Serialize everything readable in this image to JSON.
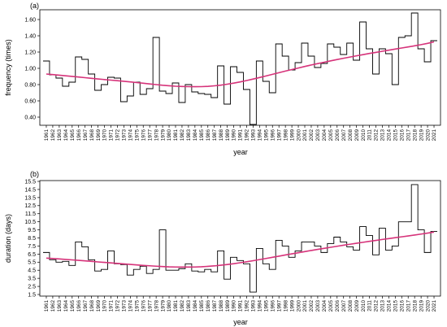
{
  "chart_data": [
    {
      "type": "line",
      "panel_label": "(a)",
      "xlabel": "year",
      "ylabel": "frequency (times)",
      "ylim": [
        0.3,
        1.72
      ],
      "yticks": [
        "0.40",
        "0.60",
        "0.80",
        "1.00",
        "1.20",
        "1.40",
        "1.60"
      ],
      "x": [
        1961,
        1962,
        1963,
        1964,
        1965,
        1966,
        1967,
        1968,
        1969,
        1970,
        1971,
        1972,
        1973,
        1974,
        1975,
        1976,
        1977,
        1978,
        1979,
        1980,
        1981,
        1982,
        1983,
        1984,
        1985,
        1986,
        1987,
        1988,
        1989,
        1990,
        1991,
        1992,
        1993,
        1994,
        1995,
        1996,
        1997,
        1998,
        1999,
        2000,
        2001,
        2002,
        2003,
        2004,
        2005,
        2006,
        2007,
        2008,
        2009,
        2010,
        2011,
        2012,
        2013,
        2014,
        2015,
        2016,
        2017,
        2018,
        2019,
        2020,
        2021
      ],
      "series": [
        {
          "style": "step",
          "values": [
            1.09,
            0.92,
            0.88,
            0.78,
            0.83,
            1.14,
            1.11,
            0.93,
            0.73,
            0.8,
            0.89,
            0.88,
            0.59,
            0.66,
            0.83,
            0.68,
            0.75,
            1.38,
            0.72,
            0.69,
            0.82,
            0.58,
            0.8,
            0.71,
            0.69,
            0.68,
            0.64,
            1.03,
            0.56,
            1.02,
            0.95,
            0.74,
            0.31,
            1.09,
            0.84,
            0.7,
            1.3,
            1.15,
            0.98,
            1.07,
            1.31,
            1.15,
            1.01,
            1.06,
            1.3,
            1.26,
            1.17,
            1.31,
            1.1,
            1.57,
            1.24,
            0.93,
            1.24,
            1.18,
            0.8,
            1.38,
            1.4,
            1.68,
            1.24,
            1.08,
            1.34
          ]
        },
        {
          "style": "trend",
          "color": "#d6337a",
          "values": [
            0.93,
            0.923,
            0.916,
            0.908,
            0.901,
            0.893,
            0.885,
            0.877,
            0.869,
            0.862,
            0.855,
            0.848,
            0.841,
            0.833,
            0.825,
            0.817,
            0.808,
            0.8,
            0.792,
            0.786,
            0.78,
            0.777,
            0.775,
            0.774,
            0.775,
            0.778,
            0.785,
            0.793,
            0.805,
            0.818,
            0.833,
            0.85,
            0.868,
            0.887,
            0.906,
            0.926,
            0.946,
            0.966,
            0.985,
            1.004,
            1.023,
            1.041,
            1.058,
            1.075,
            1.092,
            1.108,
            1.124,
            1.139,
            1.154,
            1.168,
            1.183,
            1.196,
            1.21,
            1.223,
            1.237,
            1.25,
            1.263,
            1.277,
            1.291,
            1.307,
            1.325
          ]
        }
      ]
    },
    {
      "type": "line",
      "panel_label": "(b)",
      "xlabel": "year",
      "ylabel": "duration (days)",
      "ylim": [
        1.3,
        15.6
      ],
      "yticks": [
        "1.5",
        "2.5",
        "3.5",
        "4.5",
        "5.5",
        "6.5",
        "7.5",
        "8.5",
        "9.5",
        "10.5",
        "11.5",
        "12.5",
        "13.5",
        "14.5",
        "15.5"
      ],
      "x": [
        1961,
        1962,
        1963,
        1964,
        1965,
        1966,
        1967,
        1968,
        1969,
        1970,
        1971,
        1972,
        1973,
        1974,
        1975,
        1976,
        1977,
        1978,
        1979,
        1980,
        1981,
        1982,
        1983,
        1984,
        1985,
        1986,
        1987,
        1988,
        1989,
        1990,
        1991,
        1992,
        1993,
        1994,
        1995,
        1996,
        1997,
        1998,
        1999,
        2000,
        2001,
        2002,
        2003,
        2004,
        2005,
        2006,
        2007,
        2008,
        2009,
        2010,
        2011,
        2012,
        2013,
        2014,
        2015,
        2016,
        2017,
        2018,
        2019,
        2020,
        2021
      ],
      "series": [
        {
          "style": "step",
          "values": [
            6.7,
            5.8,
            5.5,
            5.6,
            5.1,
            8.0,
            7.4,
            5.8,
            4.4,
            4.6,
            6.9,
            5.3,
            5.2,
            3.9,
            4.6,
            5.0,
            4.1,
            4.6,
            9.5,
            4.5,
            4.5,
            4.7,
            5.3,
            4.4,
            4.3,
            4.6,
            4.3,
            6.9,
            3.4,
            6.1,
            5.7,
            5.3,
            1.8,
            7.2,
            5.3,
            4.6,
            8.2,
            7.5,
            6.1,
            6.9,
            8.0,
            8.0,
            7.5,
            6.7,
            7.8,
            8.6,
            8.0,
            7.4,
            7.0,
            9.9,
            8.8,
            6.4,
            9.7,
            7.0,
            7.5,
            10.5,
            10.5,
            15.1,
            9.5,
            6.7,
            9.3
          ]
        },
        {
          "style": "trend",
          "color": "#d6337a",
          "values": [
            6.0,
            5.95,
            5.9,
            5.84,
            5.78,
            5.72,
            5.66,
            5.6,
            5.53,
            5.47,
            5.41,
            5.35,
            5.28,
            5.22,
            5.16,
            5.1,
            5.05,
            5.0,
            4.96,
            4.92,
            4.9,
            4.89,
            4.89,
            4.9,
            4.93,
            4.98,
            5.04,
            5.12,
            5.21,
            5.31,
            5.43,
            5.55,
            5.68,
            5.82,
            5.96,
            6.1,
            6.24,
            6.39,
            6.53,
            6.67,
            6.81,
            6.95,
            7.08,
            7.21,
            7.34,
            7.47,
            7.6,
            7.72,
            7.84,
            7.96,
            8.08,
            8.19,
            8.31,
            8.42,
            8.53,
            8.64,
            8.75,
            8.86,
            8.98,
            9.1,
            9.22
          ]
        }
      ]
    }
  ]
}
